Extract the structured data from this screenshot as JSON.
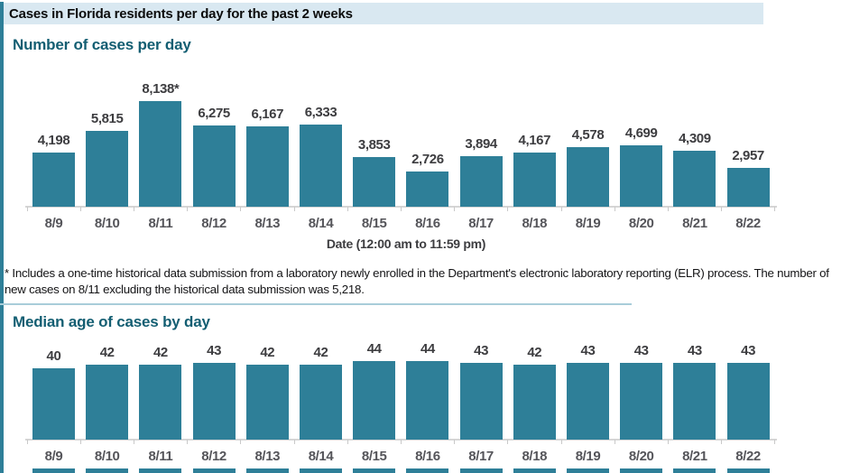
{
  "header": {
    "title": "Cases in Florida residents per day for the past 2 weeks"
  },
  "colors": {
    "bar_teal": "#2e7f98",
    "title_teal": "#135e72",
    "header_bg": "#d9e8f1",
    "accent_left": "#2e7f98"
  },
  "footnote": "* Includes a one-time historical data submission from a laboratory newly enrolled in the Department's electronic laboratory reporting (ELR) process. The number of new cases on 8/11 excluding the historical data submission was 5,218.",
  "chart_data": [
    {
      "type": "bar",
      "title": "Number of cases per day",
      "categories": [
        "8/9",
        "8/10",
        "8/11",
        "8/12",
        "8/13",
        "8/14",
        "8/15",
        "8/16",
        "8/17",
        "8/18",
        "8/19",
        "8/20",
        "8/21",
        "8/22"
      ],
      "values": [
        4198,
        5815,
        8138,
        6275,
        6167,
        6333,
        3853,
        2726,
        3894,
        4167,
        4578,
        4699,
        4309,
        2957
      ],
      "labels": [
        "4,198",
        "5,815",
        "8,138*",
        "6,275",
        "6,167",
        "6,333",
        "3,853",
        "2,726",
        "3,894",
        "4,167",
        "4,578",
        "4,699",
        "4,309",
        "2,957"
      ],
      "xlabel": "Date (12:00 am to 11:59 pm)",
      "ylim": [
        0,
        8500
      ],
      "grid": false,
      "legend": "none"
    },
    {
      "type": "bar",
      "title": "Median age of cases by day",
      "categories": [
        "8/9",
        "8/10",
        "8/11",
        "8/12",
        "8/13",
        "8/14",
        "8/15",
        "8/16",
        "8/17",
        "8/18",
        "8/19",
        "8/20",
        "8/21",
        "8/22"
      ],
      "values": [
        40,
        42,
        42,
        43,
        42,
        42,
        44,
        44,
        43,
        42,
        43,
        43,
        43,
        43
      ],
      "labels": [
        "40",
        "42",
        "42",
        "43",
        "42",
        "42",
        "44",
        "44",
        "43",
        "42",
        "43",
        "43",
        "43",
        "43"
      ],
      "xlabel": "",
      "ylim": [
        0,
        45
      ],
      "grid": false,
      "legend": "none"
    }
  ]
}
